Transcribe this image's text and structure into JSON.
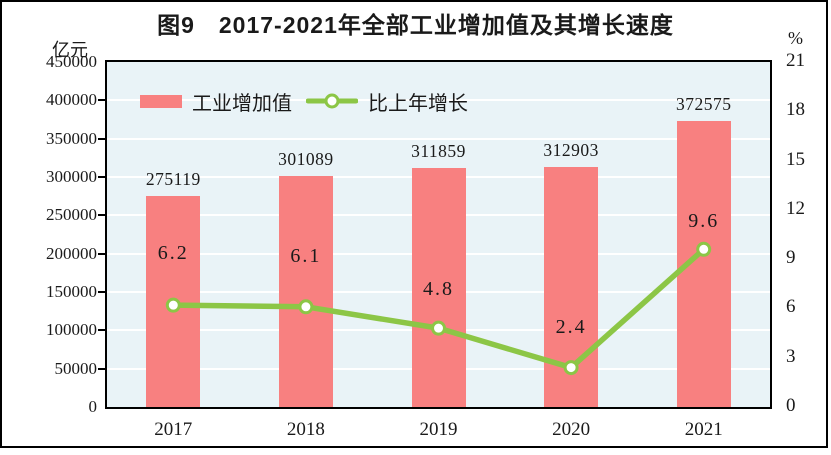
{
  "title": "图9　2017-2021年全部工业增加值及其增长速度",
  "left_axis": {
    "unit": "亿元",
    "tick_labels": [
      "0",
      "50000",
      "100000",
      "150000",
      "200000",
      "250000",
      "300000",
      "350000",
      "400000",
      "450000"
    ],
    "min": 0,
    "max": 450000
  },
  "right_axis": {
    "unit": "%",
    "tick_labels": [
      "0",
      "3",
      "6",
      "9",
      "12",
      "15",
      "18",
      "21"
    ],
    "min": 0,
    "max": 21
  },
  "legend": {
    "bar_label": "工业增加值",
    "line_label": "比上年增长"
  },
  "colors": {
    "bar": "#f88080",
    "line": "#8cc646",
    "marker_fill": "#ffffff",
    "plot_background": "#e9f3f7",
    "gridline": "#ffffff",
    "axis": "#000000",
    "text": "#1a1a1a"
  },
  "chart_data": {
    "type": "bar+line combo",
    "title": "图9　2017-2021年全部工业增加值及其增长速度",
    "categories": [
      "2017",
      "2018",
      "2019",
      "2020",
      "2021"
    ],
    "series": [
      {
        "name": "工业增加值",
        "type": "bar",
        "axis": "left",
        "unit": "亿元",
        "values": [
          275119,
          301089,
          311859,
          312903,
          372575
        ],
        "color": "#f88080"
      },
      {
        "name": "比上年增长",
        "type": "line",
        "axis": "right",
        "unit": "%",
        "values": [
          6.2,
          6.1,
          4.8,
          2.4,
          9.6
        ],
        "color": "#8cc646"
      }
    ],
    "left_ylim": [
      0,
      450000
    ],
    "left_step": 50000,
    "right_ylim": [
      0,
      21
    ],
    "right_step": 3,
    "grid": true,
    "legend_position": "top-left inside plot",
    "data_labels": "bar values above bars, growth values near line points"
  }
}
